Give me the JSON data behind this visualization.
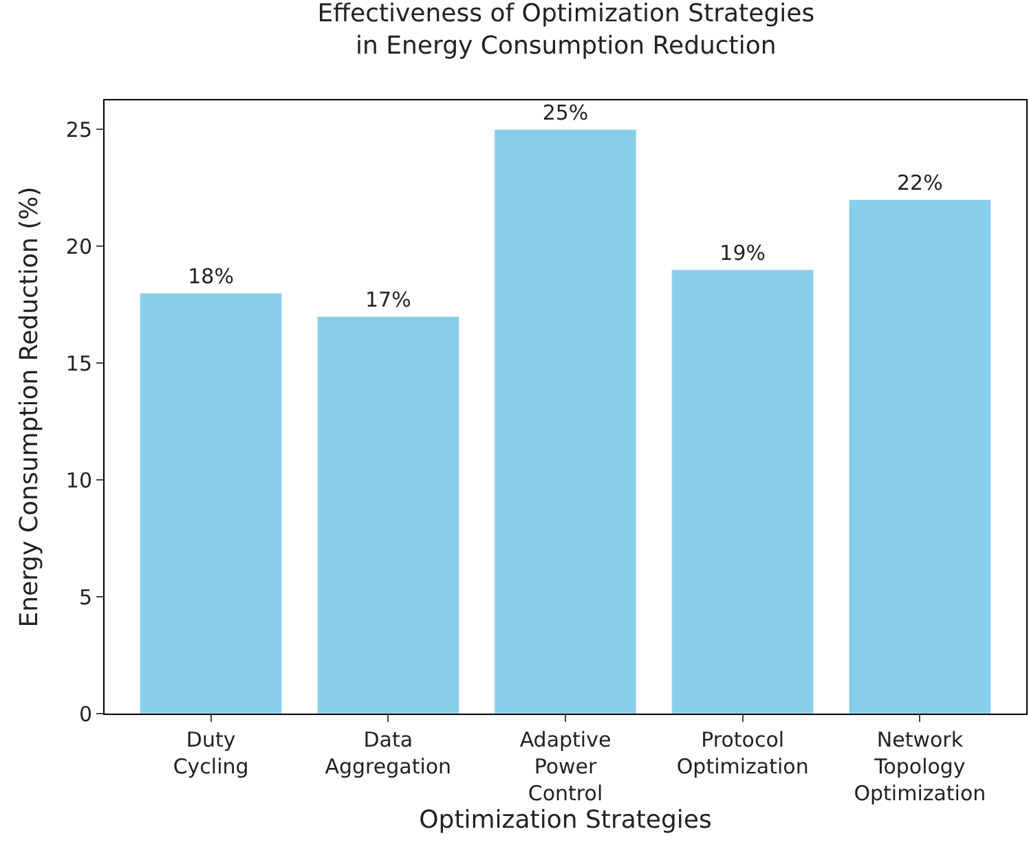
{
  "chart_data": {
    "type": "bar",
    "title": "Effectiveness of Optimization Strategies\nin Energy Consumption Reduction",
    "xlabel": "Optimization Strategies",
    "ylabel": "Energy Consumption Reduction (%)",
    "categories": [
      "Duty\nCycling",
      "Data\nAggregation",
      "Adaptive\nPower\nControl",
      "Protocol\nOptimization",
      "Network\nTopology\nOptimization"
    ],
    "values": [
      18,
      17,
      25,
      19,
      22
    ],
    "value_labels": [
      "18%",
      "17%",
      "25%",
      "19%",
      "22%"
    ],
    "color": "#87ceeb",
    "ylim": [
      0,
      26.25
    ],
    "yticks": [
      0,
      5,
      10,
      15,
      20,
      25
    ]
  }
}
